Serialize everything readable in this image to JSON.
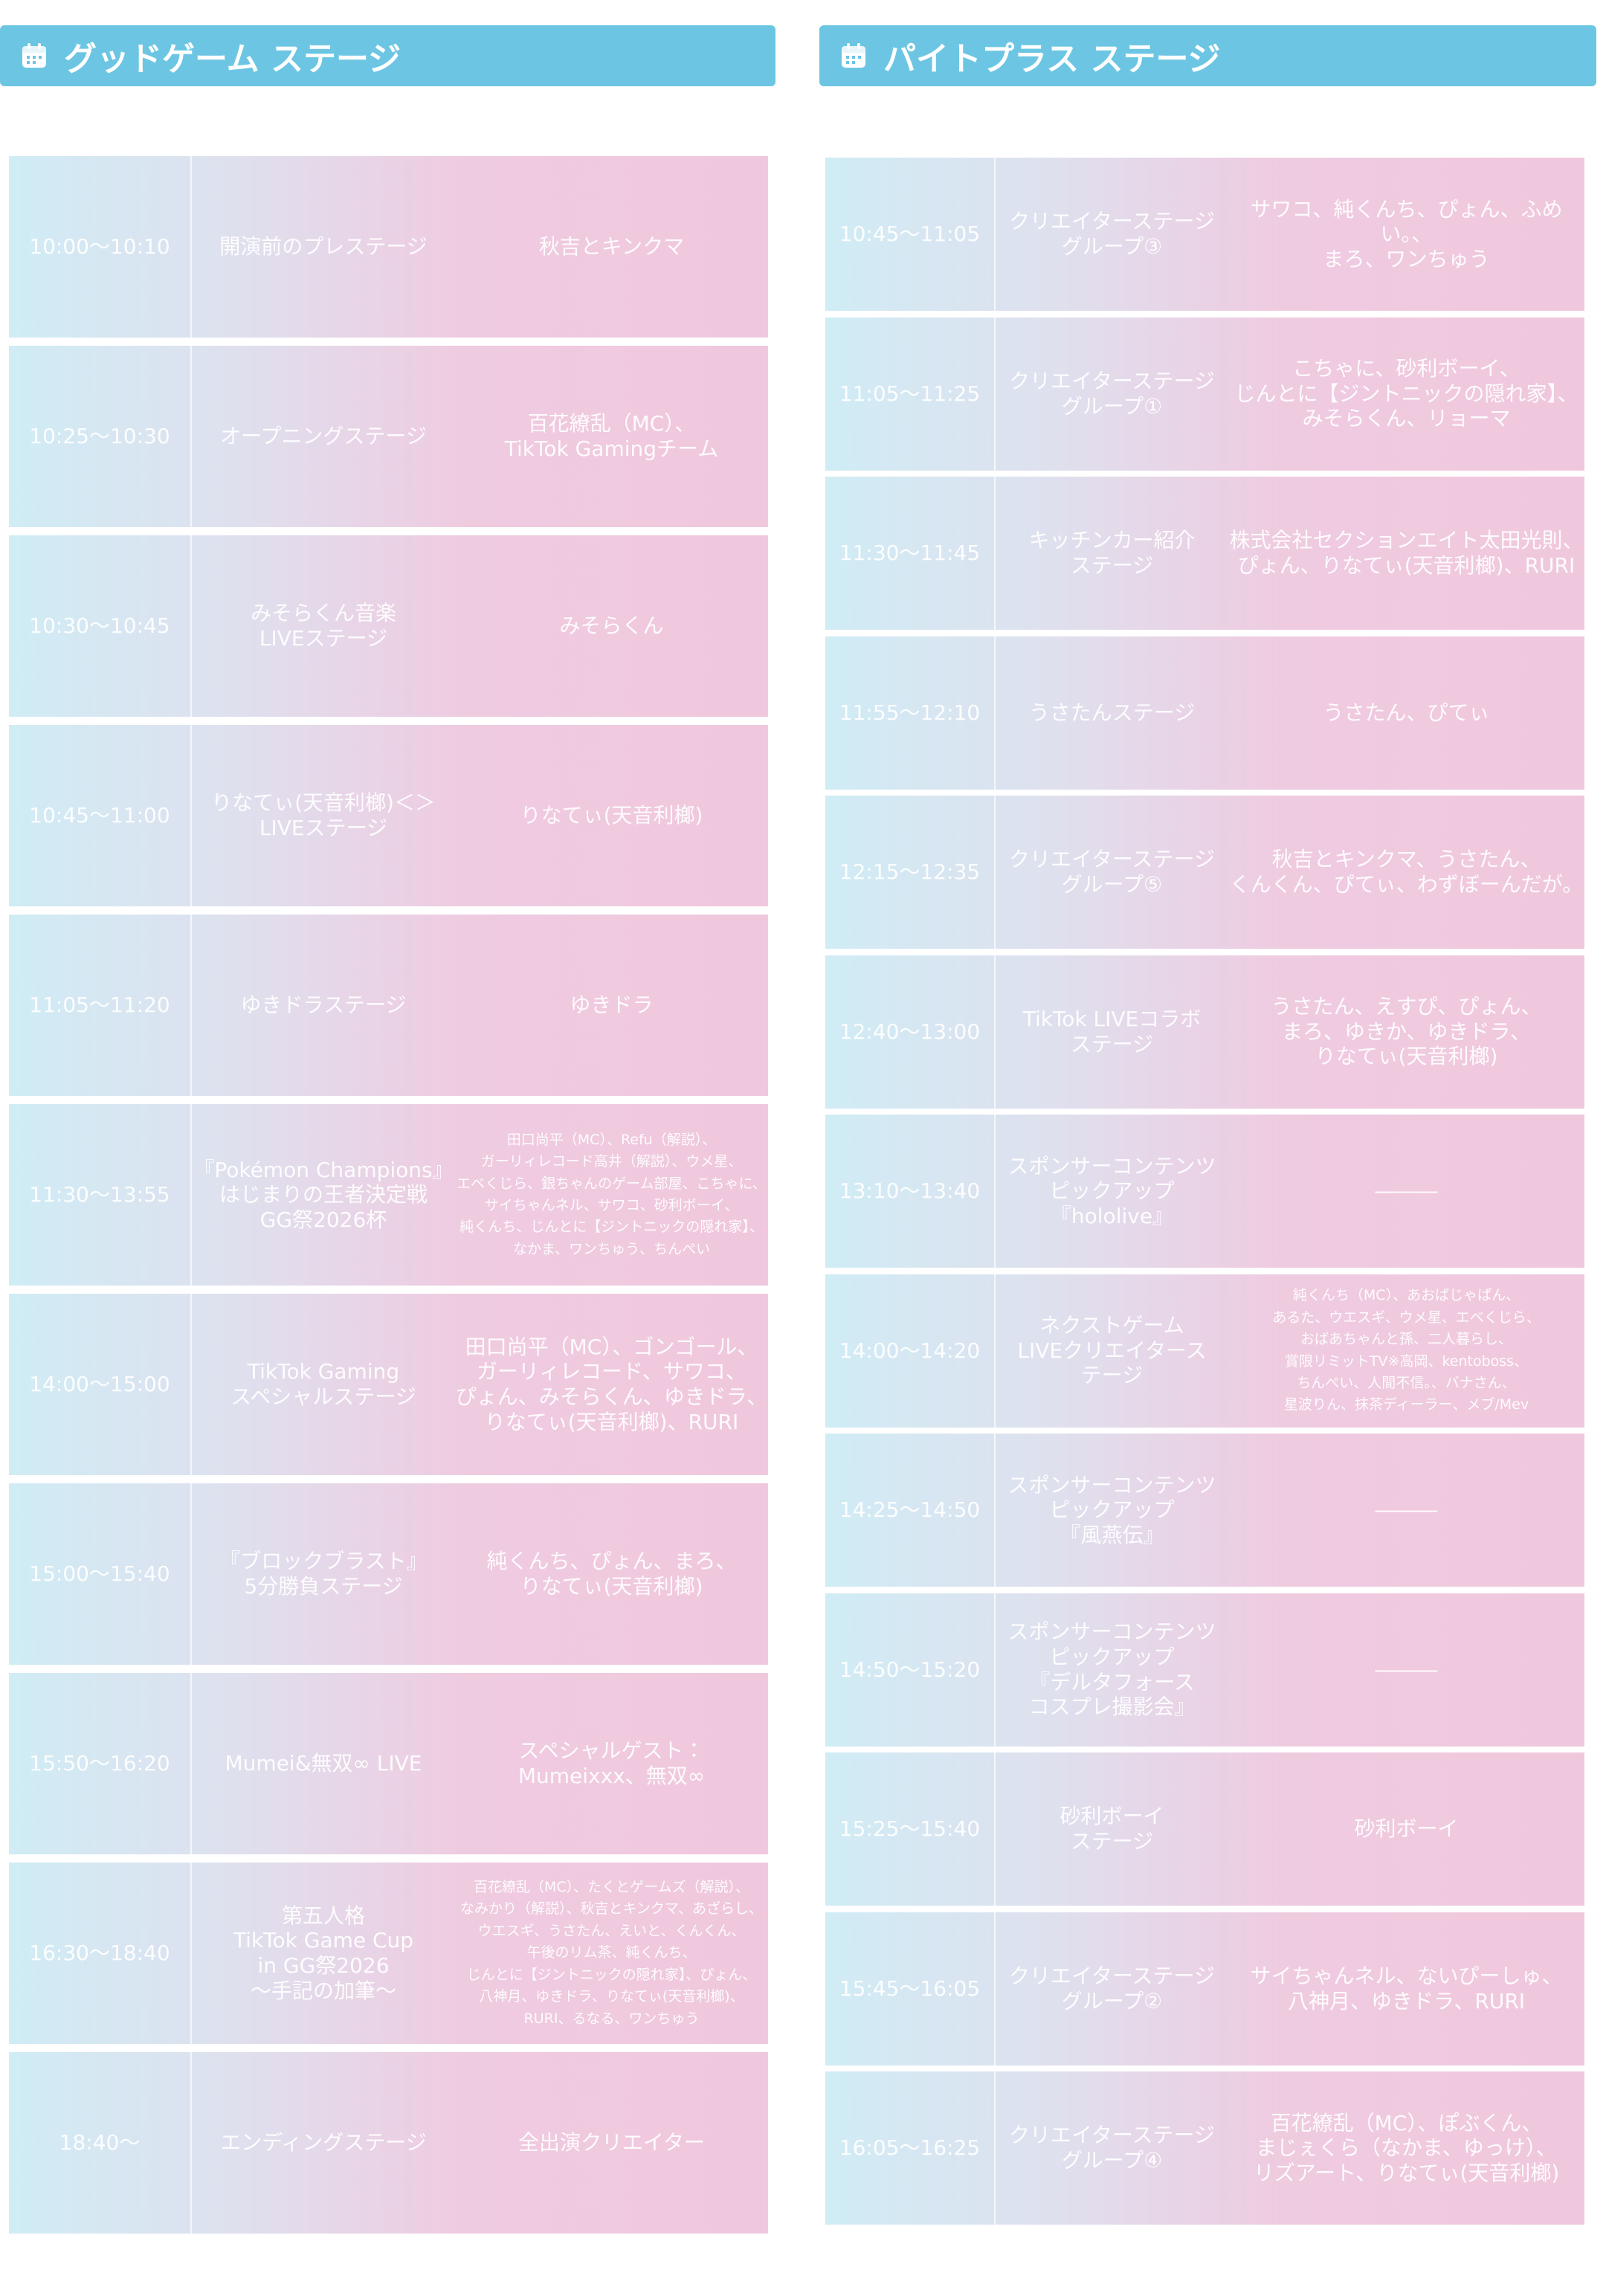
{
  "stages": [
    {
      "title": "グッドゲーム ステージ",
      "rows": [
        {
          "time": "10:00〜10:10",
          "program": "開演前のプレステージ",
          "performers": "秋吉とキンクマ"
        },
        {
          "time": "10:25〜10:30",
          "program": "オープニングステージ",
          "performers": "百花繚乱（MC）、\nTikTok Gamingチーム"
        },
        {
          "time": "10:30〜10:45",
          "program": "みそらくん音楽\nLIVEステージ",
          "performers": "みそらくん"
        },
        {
          "time": "10:45〜11:00",
          "program": "りなてぃ(天音利榔)＜＞\nLIVEステージ",
          "performers": "りなてぃ(天音利榔)"
        },
        {
          "time": "11:05〜11:20",
          "program": "ゆきドラステージ",
          "performers": "ゆきドラ"
        },
        {
          "time": "11:30〜13:55",
          "program": "『Pokémon Champions』\nはじまりの王者決定戦\nGG祭2026杯",
          "performers": "田口尚平（MC）、Refu（解説）、\nガーリィレコード高井（解説）、ウメ星、\nエベくじら、銀ちゃんのゲーム部屋、こちゃに、\nサイちゃんネル、サワコ、砂利ボーイ、\n純くんち、じんとに【ジントニックの隠れ家】、\nなかま、ワンちゅう、ちんぺい"
        },
        {
          "time": "14:00〜15:00",
          "program": "TikTok Gaming\nスペシャルステージ",
          "performers": "田口尚平（MC）、ゴンゴール、\nガーリィレコード、サワコ、\nぴょん、みそらくん、ゆきドラ、\nりなてぃ(天音利榔)、RURI"
        },
        {
          "time": "15:00〜15:40",
          "program": "『ブロックブラスト』\n5分勝負ステージ",
          "performers": "純くんち、ぴょん、まろ、\nりなてぃ(天音利榔)"
        },
        {
          "time": "15:50〜16:20",
          "program": "Mumei&無双∞ LIVE",
          "performers": "スペシャルゲスト：\nMumeixxx、無双∞"
        },
        {
          "time": "16:30〜18:40",
          "program": "第五人格\nTikTok Game Cup\nin GG祭2026\n〜手記の加筆〜",
          "performers": "百花繚乱（MC）、たくとゲームズ（解説）、\nなみかり（解説）、秋吉とキンクマ、あざらし、\nウエスギ、うさたん、えいと、くんくん、\n午後のリム茶、純くんち、\nじんとに【ジントニックの隠れ家】、ぴょん、\n八神月、ゆきドラ、りなてぃ(天音利榔)、\nRURI、るなる、ワンちゅう"
        },
        {
          "time": "18:40〜",
          "program": "エンディングステージ",
          "performers": "全出演クリエイター"
        }
      ]
    },
    {
      "title": "パイトプラス ステージ",
      "rows": [
        {
          "time": "10:45〜11:05",
          "program": "クリエイターステージ\nグループ③",
          "performers": "サワコ、純くんち、ぴょん、ふめい。、\nまろ、ワンちゅう"
        },
        {
          "time": "11:05〜11:25",
          "program": "クリエイターステージ\nグループ①",
          "performers": "こちゃに、砂利ボーイ、\nじんとに【ジントニックの隠れ家】、\nみそらくん、リョーマ"
        },
        {
          "time": "11:30〜11:45",
          "program": "キッチンカー紹介\nステージ",
          "performers": "株式会社セクションエイト太田光則、\nぴょん、りなてぃ(天音利榔)、RURI"
        },
        {
          "time": "11:55〜12:10",
          "program": "うさたんステージ",
          "performers": "うさたん、ぴてぃ"
        },
        {
          "time": "12:15〜12:35",
          "program": "クリエイターステージ\nグループ⑤",
          "performers": "秋吉とキンクマ、うさたん、\nくんくん、ぴてぃ、わずぼーんだが。"
        },
        {
          "time": "12:40〜13:00",
          "program": "TikTok LIVEコラボ\nステージ",
          "performers": "うさたん、えすぴ、ぴょん、\nまろ、ゆきか、ゆきドラ、\nりなてぃ(天音利榔)"
        },
        {
          "time": "13:10〜13:40",
          "program": "スポンサーコンテンツ\nピックアップ\n『hololive』",
          "performers": "―――"
        },
        {
          "time": "14:00〜14:20",
          "program": "ネクストゲーム\nLIVEクリエイタース\nテージ",
          "performers": "純くんち（MC）、あおばじゃぱん、\nあるた、ウエスギ、ウメ星、エベくじら、\nおばあちゃんと孫、二人暮らし、\n賞限リミットTV※高岡、kentoboss、\nちんぺい、人間不信。、バナさん、\n星波りん、抹茶ディーラー、メブ/Mev"
        },
        {
          "time": "14:25〜14:50",
          "program": "スポンサーコンテンツ\nピックアップ\n『風燕伝』",
          "performers": "―――"
        },
        {
          "time": "14:50〜15:20",
          "program": "スポンサーコンテンツ\nピックアップ\n『デルタフォース\nコスプレ撮影会』",
          "performers": "―――"
        },
        {
          "time": "15:25〜15:40",
          "program": "砂利ボーイ\nステージ",
          "performers": "砂利ボーイ"
        },
        {
          "time": "15:45〜16:05",
          "program": "クリエイターステージ\nグループ②",
          "performers": "サイちゃんネル、ないぴーしゅ、\n八神月、ゆきドラ、RURI"
        },
        {
          "time": "16:05〜16:25",
          "program": "クリエイターステージ\nグループ④",
          "performers": "百花繚乱（MC）、ぽぶくん、\nまじぇくら（なかま、ゆっけ）、\nリズアート、りなてぃ(天音利榔)"
        }
      ]
    }
  ]
}
